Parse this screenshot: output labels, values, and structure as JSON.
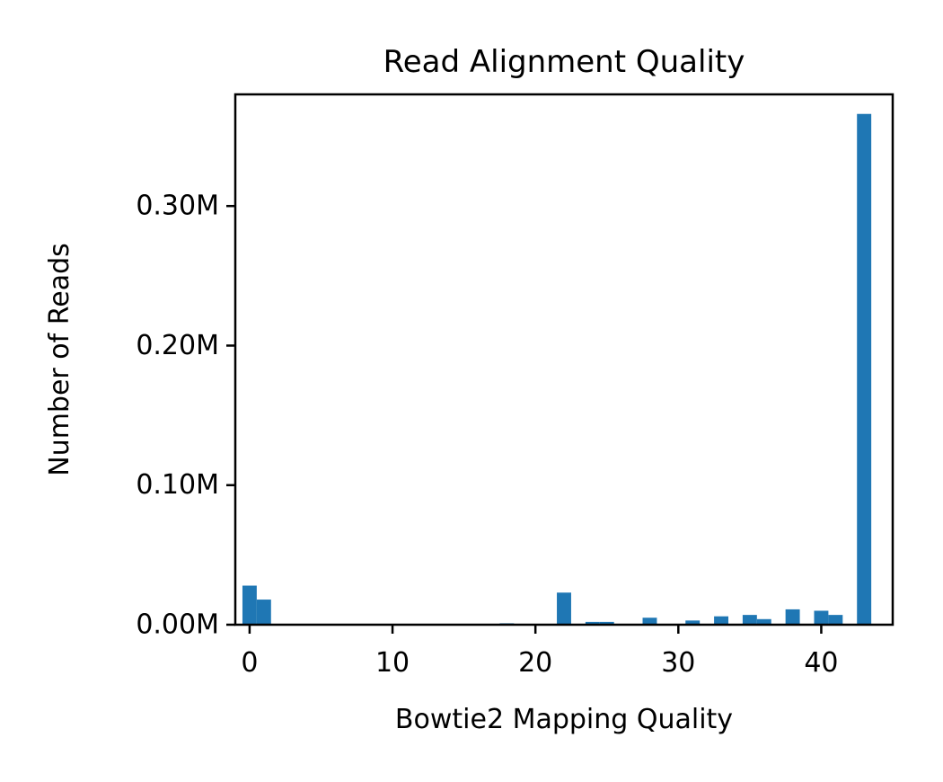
{
  "chart_data": {
    "type": "bar",
    "title": "Read Alignment Quality",
    "xlabel": "Bowtie2 Mapping Quality",
    "ylabel": "Number of Reads",
    "xlim": [
      -1,
      45
    ],
    "ylim": [
      0,
      0.38
    ],
    "y_unit": "M",
    "x_ticks": [
      0,
      10,
      20,
      30,
      40
    ],
    "y_ticks": [
      {
        "value": 0.0,
        "label": "0.00M"
      },
      {
        "value": 0.1,
        "label": "0.10M"
      },
      {
        "value": 0.2,
        "label": "0.20M"
      },
      {
        "value": 0.3,
        "label": "0.30M"
      }
    ],
    "bar_width": 1.0,
    "grid": false,
    "color": "#1f77b4",
    "bars": [
      {
        "x": 0,
        "value": 0.028
      },
      {
        "x": 1,
        "value": 0.018
      },
      {
        "x": 18,
        "value": 0.001
      },
      {
        "x": 22,
        "value": 0.023
      },
      {
        "x": 24,
        "value": 0.002
      },
      {
        "x": 25,
        "value": 0.002
      },
      {
        "x": 28,
        "value": 0.005
      },
      {
        "x": 31,
        "value": 0.003
      },
      {
        "x": 33,
        "value": 0.006
      },
      {
        "x": 35,
        "value": 0.007
      },
      {
        "x": 36,
        "value": 0.004
      },
      {
        "x": 38,
        "value": 0.011
      },
      {
        "x": 40,
        "value": 0.01
      },
      {
        "x": 41,
        "value": 0.007
      },
      {
        "x": 43,
        "value": 0.366
      }
    ]
  }
}
